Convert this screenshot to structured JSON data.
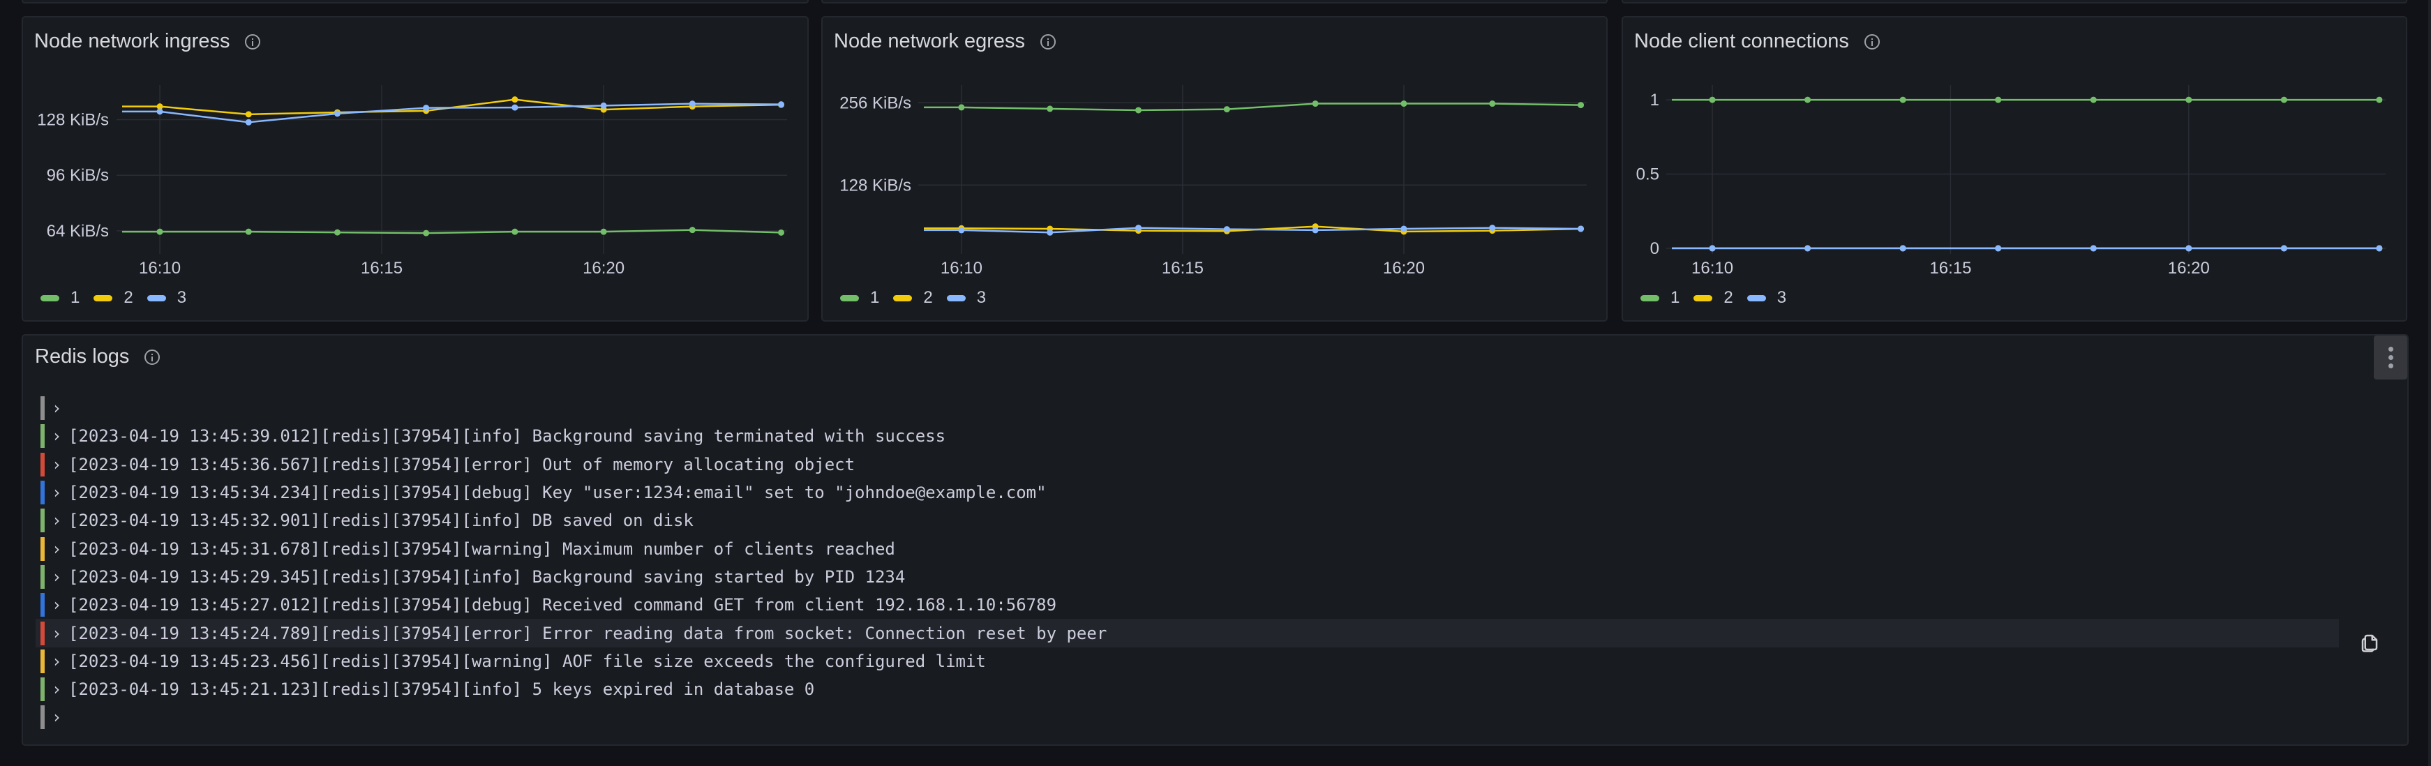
{
  "colors": {
    "series1": "#73bf69",
    "series2": "#f2cc0c",
    "series3": "#8ab8ff",
    "grid": "#2a2d33",
    "info": "#7eb26d",
    "error": "#d44a3a",
    "debug": "#3274d9",
    "warning": "#eab839",
    "none": "#8e8e8e"
  },
  "legend": [
    "1",
    "2",
    "3"
  ],
  "chart_data": [
    {
      "type": "line",
      "title": "Node network ingress",
      "info_icon": "info-circle-icon",
      "x": [
        "16:10",
        "16:12",
        "16:14",
        "16:16",
        "16:18",
        "16:20",
        "16:22",
        "16:24"
      ],
      "xticks": [
        "16:10",
        "16:15",
        "16:20"
      ],
      "xlim": [
        "16:09:09",
        "16:24:08"
      ],
      "yticks": [
        {
          "v": 64,
          "label": "64 KiB/s"
        },
        {
          "v": 96,
          "label": "96 KiB/s"
        },
        {
          "v": 128,
          "label": "128 KiB/s"
        }
      ],
      "ylim": [
        50.7,
        147.9
      ],
      "grid": true,
      "legend_position": "bottom-left",
      "series": [
        {
          "name": "1",
          "values": [
            63.5,
            63.5,
            63.1,
            62.7,
            63.5,
            63.5,
            64.5,
            63.0
          ]
        },
        {
          "name": "2",
          "values": [
            135.6,
            131.1,
            132.2,
            133.1,
            139.6,
            133.8,
            135.6,
            136.6
          ]
        },
        {
          "name": "3",
          "values": [
            132.7,
            126.5,
            131.5,
            134.8,
            135.0,
            136.1,
            137.2,
            136.8
          ]
        }
      ]
    },
    {
      "type": "line",
      "title": "Node network egress",
      "info_icon": "info-circle-icon",
      "x": [
        "16:10",
        "16:12",
        "16:14",
        "16:16",
        "16:18",
        "16:20",
        "16:22",
        "16:24"
      ],
      "xticks": [
        "16:10",
        "16:15",
        "16:20"
      ],
      "xlim": [
        "16:09:09",
        "16:24:08"
      ],
      "yticks": [
        {
          "v": 128,
          "label": "128 KiB/s"
        },
        {
          "v": 256,
          "label": "256 KiB/s"
        }
      ],
      "ylim": [
        20.9,
        283.4
      ],
      "grid": true,
      "legend_position": "bottom-left",
      "series": [
        {
          "name": "1",
          "values": [
            248.8,
            246.6,
            244.4,
            245.9,
            254.6,
            254.6,
            254.6,
            252.4
          ]
        },
        {
          "name": "2",
          "values": [
            60.7,
            60.0,
            57.1,
            56.4,
            63.6,
            55.7,
            57.1,
            60.0
          ]
        },
        {
          "name": "3",
          "values": [
            57.9,
            54.2,
            61.5,
            59.3,
            57.9,
            60.0,
            61.5,
            60.0
          ]
        }
      ]
    },
    {
      "type": "line",
      "title": "Node client connections",
      "info_icon": "info-circle-icon",
      "x": [
        "16:10",
        "16:12",
        "16:14",
        "16:16",
        "16:18",
        "16:20",
        "16:22",
        "16:24"
      ],
      "xticks": [
        "16:10",
        "16:15",
        "16:20"
      ],
      "xlim": [
        "16:09:09",
        "16:24:08"
      ],
      "yticks": [
        {
          "v": 0,
          "label": "0"
        },
        {
          "v": 0.5,
          "label": "0.5"
        },
        {
          "v": 1,
          "label": "1"
        }
      ],
      "ylim": [
        -0.038,
        1.099
      ],
      "grid": true,
      "legend_position": "bottom-left",
      "series": [
        {
          "name": "1",
          "values": [
            1,
            1,
            1,
            1,
            1,
            1,
            1,
            1
          ]
        },
        {
          "name": "2",
          "values": [
            0,
            0,
            0,
            0,
            0,
            0,
            0,
            0
          ]
        },
        {
          "name": "3",
          "values": [
            0,
            0,
            0,
            0,
            0,
            0,
            0,
            0
          ]
        }
      ]
    }
  ],
  "logs": {
    "title": "Redis logs",
    "menu_icon": "kebab-menu-icon",
    "copy_icon": "copy-icon",
    "rows": [
      {
        "level": "none",
        "text": ""
      },
      {
        "level": "info",
        "text": "[2023-04-19 13:45:39.012][redis][37954][info] Background saving terminated with success"
      },
      {
        "level": "error",
        "text": "[2023-04-19 13:45:36.567][redis][37954][error] Out of memory allocating object"
      },
      {
        "level": "debug",
        "text": "[2023-04-19 13:45:34.234][redis][37954][debug] Key \"user:1234:email\" set to \"johndoe@example.com\""
      },
      {
        "level": "info",
        "text": "[2023-04-19 13:45:32.901][redis][37954][info] DB saved on disk"
      },
      {
        "level": "warning",
        "text": "[2023-04-19 13:45:31.678][redis][37954][warning] Maximum number of clients reached"
      },
      {
        "level": "info",
        "text": "[2023-04-19 13:45:29.345][redis][37954][info] Background saving started by PID 1234"
      },
      {
        "level": "debug",
        "text": "[2023-04-19 13:45:27.012][redis][37954][debug] Received command GET from client 192.168.1.10:56789"
      },
      {
        "level": "error",
        "text": "[2023-04-19 13:45:24.789][redis][37954][error] Error reading data from socket: Connection reset by peer",
        "highlighted": true
      },
      {
        "level": "warning",
        "text": "[2023-04-19 13:45:23.456][redis][37954][warning] AOF file size exceeds the configured limit"
      },
      {
        "level": "info",
        "text": "[2023-04-19 13:45:21.123][redis][37954][info] 5 keys expired in database 0"
      },
      {
        "level": "none",
        "text": ""
      }
    ]
  }
}
